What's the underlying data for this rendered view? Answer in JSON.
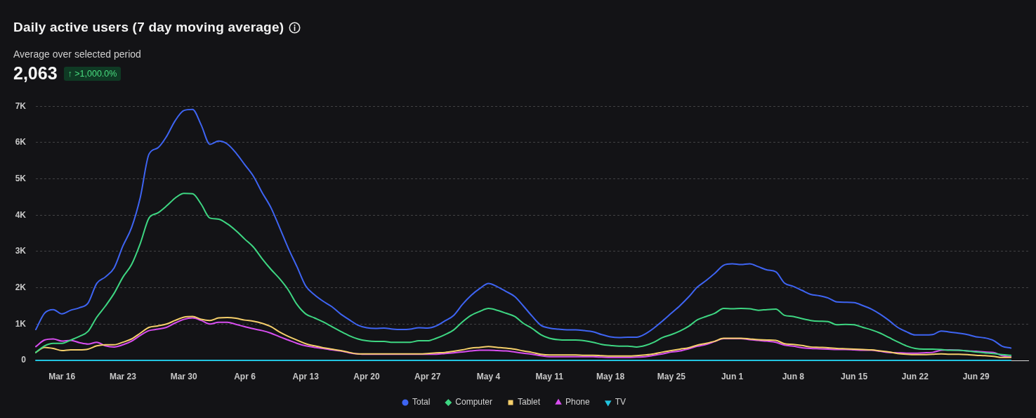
{
  "chart_data": {
    "type": "line",
    "title": "Daily active users (7 day moving average)",
    "subtitle": "Average over selected period",
    "annotations": [
      "2,063",
      "↑ >1,000.0%"
    ],
    "x": [
      "--03-13",
      "--03-14",
      "--03-15",
      "--03-16",
      "--03-17",
      "--03-18",
      "--03-19",
      "--03-20",
      "--03-21",
      "--03-22",
      "--03-23",
      "--03-24",
      "--03-25",
      "--03-26",
      "--03-27",
      "--03-28",
      "--03-29",
      "--03-30",
      "--03-31",
      "--04-01",
      "--04-02",
      "--04-03",
      "--04-04",
      "--04-05",
      "--04-06",
      "--04-07",
      "--04-08",
      "--04-09",
      "--04-10",
      "--04-11",
      "--04-12",
      "--04-13",
      "--04-14",
      "--04-15",
      "--04-16",
      "--04-17",
      "--04-18",
      "--04-19",
      "--04-20",
      "--04-21",
      "--04-22",
      "--04-23",
      "--04-24",
      "--04-25",
      "--04-26",
      "--04-27",
      "--04-28",
      "--04-29",
      "--04-30",
      "--05-01",
      "--05-02",
      "--05-03",
      "--05-04",
      "--05-05",
      "--05-06",
      "--05-07",
      "--05-08",
      "--05-09",
      "--05-10",
      "--05-11",
      "--05-12",
      "--05-13",
      "--05-14",
      "--05-15",
      "--05-16",
      "--05-17",
      "--05-18",
      "--05-19",
      "--05-20",
      "--05-21",
      "--05-22",
      "--05-23",
      "--05-24",
      "--05-25",
      "--05-26",
      "--05-27",
      "--05-28",
      "--05-29",
      "--05-30",
      "--05-31",
      "--06-01",
      "--06-02",
      "--06-03",
      "--06-04",
      "--06-05",
      "--06-06",
      "--06-07",
      "--06-08",
      "--06-09",
      "--06-10",
      "--06-11",
      "--06-12",
      "--06-13",
      "--06-14",
      "--06-15",
      "--06-16",
      "--06-17",
      "--06-18",
      "--06-19",
      "--06-20",
      "--06-21",
      "--06-22",
      "--06-23",
      "--06-24",
      "--06-25",
      "--06-26",
      "--06-27",
      "--06-28",
      "--06-29",
      "--06-30",
      "--07-01",
      "--07-02",
      "--07-03"
    ],
    "series": [
      {
        "name": "Total",
        "color": "#3e64f2",
        "values": [
          850,
          1300,
          1400,
          1280,
          1380,
          1450,
          1580,
          2120,
          2300,
          2550,
          3150,
          3660,
          4490,
          5680,
          5850,
          6160,
          6600,
          6880,
          6910,
          6480,
          5950,
          6040,
          5960,
          5710,
          5390,
          5070,
          4620,
          4210,
          3660,
          3090,
          2580,
          2050,
          1810,
          1630,
          1480,
          1280,
          1120,
          970,
          900,
          880,
          890,
          860,
          850,
          860,
          900,
          890,
          950,
          1090,
          1240,
          1540,
          1790,
          1980,
          2120,
          2030,
          1900,
          1760,
          1500,
          1220,
          970,
          890,
          860,
          840,
          840,
          820,
          790,
          710,
          650,
          630,
          640,
          640,
          730,
          890,
          1090,
          1300,
          1510,
          1750,
          2020,
          2200,
          2400,
          2620,
          2660,
          2640,
          2660,
          2580,
          2490,
          2440,
          2130,
          2040,
          1930,
          1820,
          1780,
          1720,
          1610,
          1600,
          1590,
          1510,
          1410,
          1270,
          1100,
          910,
          790,
          700,
          700,
          710,
          810,
          780,
          750,
          710,
          650,
          620,
          550,
          390,
          340
        ]
      },
      {
        "name": "Computer",
        "color": "#3ed682",
        "values": [
          220,
          400,
          470,
          470,
          560,
          660,
          800,
          1190,
          1500,
          1850,
          2290,
          2640,
          3220,
          3920,
          4060,
          4250,
          4470,
          4600,
          4590,
          4300,
          3920,
          3890,
          3760,
          3570,
          3340,
          3120,
          2800,
          2510,
          2250,
          1940,
          1540,
          1280,
          1170,
          1060,
          930,
          800,
          680,
          590,
          540,
          520,
          520,
          500,
          500,
          500,
          540,
          540,
          610,
          710,
          840,
          1060,
          1240,
          1350,
          1430,
          1380,
          1300,
          1210,
          1020,
          880,
          710,
          610,
          570,
          560,
          560,
          540,
          500,
          440,
          410,
          390,
          390,
          370,
          410,
          500,
          630,
          710,
          810,
          940,
          1120,
          1210,
          1300,
          1430,
          1420,
          1430,
          1420,
          1380,
          1400,
          1410,
          1240,
          1210,
          1150,
          1100,
          1080,
          1070,
          980,
          990,
          980,
          910,
          840,
          750,
          630,
          510,
          400,
          330,
          310,
          310,
          300,
          280,
          280,
          260,
          230,
          210,
          190,
          160,
          140
        ]
      },
      {
        "name": "Tablet",
        "color": "#f5cf6b",
        "values": [
          220,
          360,
          330,
          270,
          290,
          290,
          310,
          400,
          430,
          430,
          500,
          590,
          750,
          910,
          950,
          1000,
          1100,
          1190,
          1210,
          1130,
          1100,
          1170,
          1180,
          1160,
          1110,
          1080,
          1020,
          930,
          780,
          660,
          560,
          460,
          400,
          350,
          310,
          270,
          220,
          180,
          180,
          180,
          180,
          180,
          180,
          180,
          180,
          190,
          210,
          220,
          250,
          290,
          340,
          360,
          380,
          360,
          340,
          310,
          260,
          220,
          170,
          150,
          150,
          150,
          150,
          140,
          140,
          130,
          120,
          120,
          120,
          130,
          150,
          180,
          230,
          270,
          310,
          350,
          420,
          470,
          530,
          610,
          610,
          610,
          590,
          570,
          560,
          550,
          460,
          440,
          410,
          370,
          360,
          350,
          330,
          320,
          310,
          300,
          290,
          260,
          230,
          190,
          170,
          160,
          160,
          170,
          180,
          170,
          170,
          160,
          140,
          130,
          110,
          80,
          80
        ]
      },
      {
        "name": "Phone",
        "color": "#d84ef0",
        "values": [
          380,
          560,
          590,
          530,
          550,
          490,
          450,
          500,
          400,
          370,
          430,
          530,
          690,
          820,
          860,
          910,
          1030,
          1130,
          1170,
          1100,
          1000,
          1050,
          1050,
          990,
          930,
          870,
          820,
          750,
          650,
          560,
          470,
          400,
          360,
          330,
          290,
          260,
          210,
          180,
          170,
          170,
          170,
          170,
          170,
          170,
          170,
          170,
          170,
          190,
          210,
          230,
          260,
          280,
          280,
          270,
          260,
          230,
          200,
          170,
          130,
          100,
          100,
          100,
          100,
          100,
          100,
          90,
          80,
          80,
          80,
          90,
          100,
          140,
          180,
          230,
          260,
          320,
          390,
          440,
          520,
          600,
          600,
          600,
          570,
          550,
          530,
          500,
          420,
          390,
          350,
          330,
          320,
          310,
          300,
          300,
          290,
          280,
          280,
          250,
          220,
          210,
          200,
          200,
          210,
          220,
          280,
          290,
          280,
          260,
          250,
          230,
          220,
          130,
          100
        ]
      },
      {
        "name": "TV",
        "color": "#22c4e0",
        "values": [
          0,
          0,
          0,
          0,
          0,
          0,
          0,
          0,
          0,
          0,
          0,
          0,
          0,
          0,
          0,
          0,
          0,
          0,
          0,
          0,
          0,
          0,
          0,
          0,
          0,
          0,
          0,
          0,
          0,
          0,
          0,
          0,
          0,
          0,
          0,
          0,
          0,
          0,
          0,
          0,
          0,
          0,
          0,
          0,
          0,
          0,
          0,
          0,
          0,
          0,
          0,
          0,
          0,
          0,
          0,
          0,
          0,
          0,
          0,
          0,
          0,
          0,
          0,
          0,
          0,
          0,
          0,
          0,
          0,
          0,
          0,
          0,
          0,
          0,
          0,
          0,
          0,
          0,
          0,
          0,
          0,
          0,
          0,
          0,
          0,
          0,
          0,
          0,
          0,
          0,
          0,
          0,
          0,
          0,
          0,
          0,
          0,
          0,
          0,
          0,
          0,
          0,
          0,
          0,
          0,
          0,
          0,
          0,
          0,
          0,
          0,
          0,
          0
        ]
      }
    ],
    "xlim": [
      "--03-13",
      "--07-05"
    ],
    "xticks": [
      {
        "value": "--03-16",
        "label": "Mar 16"
      },
      {
        "value": "--03-23",
        "label": "Mar 23"
      },
      {
        "value": "--03-30",
        "label": "Mar 30"
      },
      {
        "value": "--04-06",
        "label": "Apr 6"
      },
      {
        "value": "--04-13",
        "label": "Apr 13"
      },
      {
        "value": "--04-20",
        "label": "Apr 20"
      },
      {
        "value": "--04-27",
        "label": "Apr 27"
      },
      {
        "value": "--05-04",
        "label": "May 4"
      },
      {
        "value": "--05-11",
        "label": "May 11"
      },
      {
        "value": "--05-18",
        "label": "May 18"
      },
      {
        "value": "--05-25",
        "label": "May 25"
      },
      {
        "value": "--06-01",
        "label": "Jun 1"
      },
      {
        "value": "--06-08",
        "label": "Jun 8"
      },
      {
        "value": "--06-15",
        "label": "Jun 15"
      },
      {
        "value": "--06-22",
        "label": "Jun 22"
      },
      {
        "value": "--06-29",
        "label": "Jun 29"
      }
    ],
    "ylim": [
      0,
      7000
    ],
    "yticks": [
      0,
      {
        "value": 1000,
        "label": "1K"
      },
      {
        "value": 2000,
        "label": "2K"
      },
      {
        "value": 3000,
        "label": "3K"
      },
      {
        "value": 4000,
        "label": "4K"
      },
      {
        "value": 5000,
        "label": "5K"
      },
      {
        "value": 6000,
        "label": "6K"
      },
      {
        "value": 7000,
        "label": "7K"
      }
    ],
    "grid": "y",
    "legend": "bottom",
    "marker": "none",
    "line_style": "solid"
  }
}
